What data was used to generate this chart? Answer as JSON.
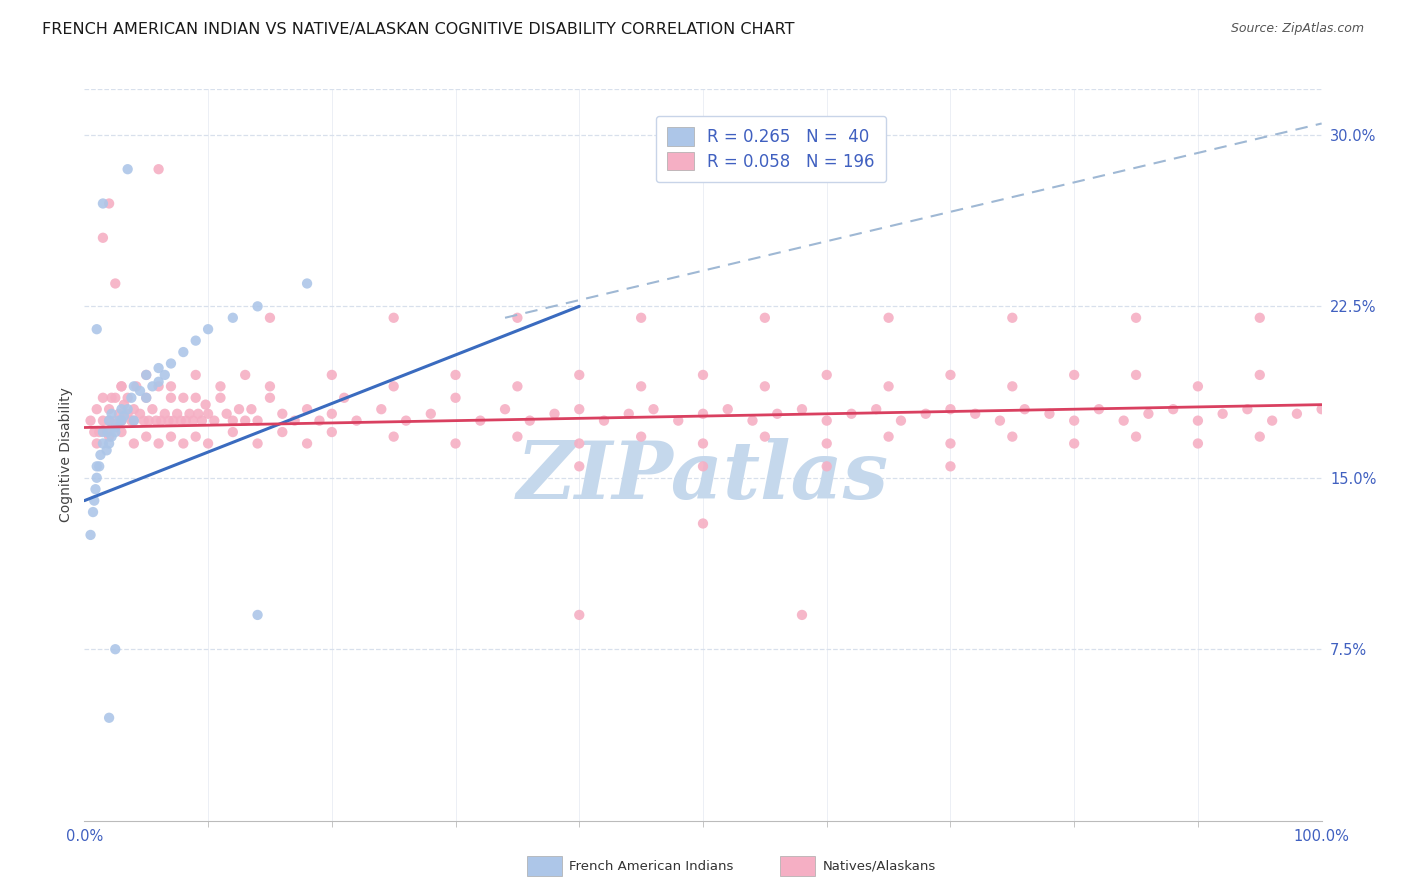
{
  "title": "FRENCH AMERICAN INDIAN VS NATIVE/ALASKAN COGNITIVE DISABILITY CORRELATION CHART",
  "source": "Source: ZipAtlas.com",
  "ylabel": "Cognitive Disability",
  "xlim": [
    0.0,
    1.0
  ],
  "ylim": [
    0.0,
    0.32
  ],
  "ytick_vals": [
    0.075,
    0.15,
    0.225,
    0.3
  ],
  "ytick_labels": [
    "7.5%",
    "15.0%",
    "22.5%",
    "30.0%"
  ],
  "blue_R": 0.265,
  "blue_N": 40,
  "pink_R": 0.058,
  "pink_N": 196,
  "blue_color": "#adc6e8",
  "pink_color": "#f5afc4",
  "blue_line_color": "#3a6bbf",
  "pink_line_color": "#d94060",
  "dashed_line_color": "#9fb8d4",
  "watermark": "ZIPatlas",
  "watermark_color": "#c5d8ec",
  "tick_color": "#4060c0",
  "title_color": "#1a1a1a",
  "source_color": "#555555",
  "legend_border_color": "#c8d4e8",
  "grid_color": "#d8e0ec",
  "bg_color": "#ffffff",
  "blue_x": [
    0.005,
    0.007,
    0.008,
    0.009,
    0.01,
    0.01,
    0.012,
    0.013,
    0.015,
    0.015,
    0.018,
    0.019,
    0.02,
    0.02,
    0.022,
    0.022,
    0.025,
    0.025,
    0.028,
    0.03,
    0.03,
    0.032,
    0.035,
    0.038,
    0.04,
    0.04,
    0.045,
    0.05,
    0.05,
    0.055,
    0.06,
    0.06,
    0.065,
    0.07,
    0.08,
    0.09,
    0.1,
    0.12,
    0.14,
    0.18
  ],
  "blue_y": [
    0.125,
    0.135,
    0.14,
    0.145,
    0.15,
    0.155,
    0.155,
    0.16,
    0.165,
    0.17,
    0.162,
    0.17,
    0.165,
    0.175,
    0.168,
    0.178,
    0.172,
    0.17,
    0.175,
    0.175,
    0.18,
    0.177,
    0.18,
    0.185,
    0.175,
    0.19,
    0.188,
    0.185,
    0.195,
    0.19,
    0.192,
    0.198,
    0.195,
    0.2,
    0.205,
    0.21,
    0.215,
    0.22,
    0.225,
    0.235
  ],
  "blue_x_outliers": [
    0.01,
    0.015,
    0.02,
    0.025,
    0.035,
    0.14
  ],
  "blue_y_outliers": [
    0.215,
    0.27,
    0.045,
    0.075,
    0.285,
    0.09
  ],
  "pink_x": [
    0.005,
    0.008,
    0.01,
    0.012,
    0.015,
    0.015,
    0.018,
    0.02,
    0.02,
    0.022,
    0.025,
    0.025,
    0.028,
    0.03,
    0.03,
    0.032,
    0.035,
    0.035,
    0.038,
    0.04,
    0.04,
    0.042,
    0.045,
    0.048,
    0.05,
    0.052,
    0.055,
    0.058,
    0.06,
    0.062,
    0.065,
    0.068,
    0.07,
    0.072,
    0.075,
    0.078,
    0.08,
    0.082,
    0.085,
    0.088,
    0.09,
    0.092,
    0.095,
    0.098,
    0.1,
    0.105,
    0.11,
    0.115,
    0.12,
    0.125,
    0.13,
    0.135,
    0.14,
    0.15,
    0.16,
    0.17,
    0.18,
    0.19,
    0.2,
    0.21,
    0.22,
    0.24,
    0.26,
    0.28,
    0.3,
    0.32,
    0.34,
    0.36,
    0.38,
    0.4,
    0.42,
    0.44,
    0.46,
    0.48,
    0.5,
    0.52,
    0.54,
    0.56,
    0.58,
    0.6,
    0.62,
    0.64,
    0.66,
    0.68,
    0.7,
    0.72,
    0.74,
    0.76,
    0.78,
    0.8,
    0.82,
    0.84,
    0.86,
    0.88,
    0.9,
    0.92,
    0.94,
    0.96,
    0.98,
    1.0,
    0.01,
    0.02,
    0.03,
    0.04,
    0.05,
    0.06,
    0.07,
    0.08,
    0.09,
    0.1,
    0.12,
    0.14,
    0.16,
    0.18,
    0.2,
    0.25,
    0.3,
    0.35,
    0.4,
    0.45,
    0.5,
    0.55,
    0.6,
    0.65,
    0.7,
    0.75,
    0.8,
    0.85,
    0.9,
    0.95,
    0.03,
    0.05,
    0.07,
    0.09,
    0.11,
    0.13,
    0.15,
    0.2,
    0.25,
    0.3,
    0.35,
    0.4,
    0.45,
    0.5,
    0.55,
    0.6,
    0.65,
    0.7,
    0.75,
    0.8,
    0.85,
    0.9,
    0.95,
    0.15,
    0.25,
    0.35,
    0.45,
    0.55,
    0.65,
    0.75,
    0.85,
    0.95,
    0.4,
    0.5,
    0.6,
    0.7
  ],
  "pink_y": [
    0.175,
    0.17,
    0.18,
    0.17,
    0.185,
    0.175,
    0.17,
    0.18,
    0.175,
    0.185,
    0.175,
    0.185,
    0.178,
    0.19,
    0.175,
    0.182,
    0.178,
    0.185,
    0.175,
    0.18,
    0.175,
    0.19,
    0.178,
    0.175,
    0.185,
    0.175,
    0.18,
    0.175,
    0.19,
    0.175,
    0.178,
    0.175,
    0.185,
    0.175,
    0.178,
    0.175,
    0.185,
    0.175,
    0.178,
    0.175,
    0.185,
    0.178,
    0.175,
    0.182,
    0.178,
    0.175,
    0.185,
    0.178,
    0.175,
    0.18,
    0.175,
    0.18,
    0.175,
    0.185,
    0.178,
    0.175,
    0.18,
    0.175,
    0.178,
    0.185,
    0.175,
    0.18,
    0.175,
    0.178,
    0.185,
    0.175,
    0.18,
    0.175,
    0.178,
    0.18,
    0.175,
    0.178,
    0.18,
    0.175,
    0.178,
    0.18,
    0.175,
    0.178,
    0.18,
    0.175,
    0.178,
    0.18,
    0.175,
    0.178,
    0.18,
    0.178,
    0.175,
    0.18,
    0.178,
    0.175,
    0.18,
    0.175,
    0.178,
    0.18,
    0.175,
    0.178,
    0.18,
    0.175,
    0.178,
    0.18,
    0.165,
    0.168,
    0.17,
    0.165,
    0.168,
    0.165,
    0.168,
    0.165,
    0.168,
    0.165,
    0.17,
    0.165,
    0.17,
    0.165,
    0.17,
    0.168,
    0.165,
    0.168,
    0.165,
    0.168,
    0.165,
    0.168,
    0.165,
    0.168,
    0.165,
    0.168,
    0.165,
    0.168,
    0.165,
    0.168,
    0.19,
    0.195,
    0.19,
    0.195,
    0.19,
    0.195,
    0.19,
    0.195,
    0.19,
    0.195,
    0.19,
    0.195,
    0.19,
    0.195,
    0.19,
    0.195,
    0.19,
    0.195,
    0.19,
    0.195,
    0.195,
    0.19,
    0.195,
    0.22,
    0.22,
    0.22,
    0.22,
    0.22,
    0.22,
    0.22,
    0.22,
    0.22,
    0.155,
    0.155,
    0.155,
    0.155
  ],
  "pink_x_outliers": [
    0.015,
    0.02,
    0.025,
    0.06,
    0.4,
    0.58,
    0.5
  ],
  "pink_y_outliers": [
    0.255,
    0.27,
    0.235,
    0.285,
    0.09,
    0.09,
    0.13
  ],
  "blue_line_x": [
    0.0,
    0.4
  ],
  "blue_line_y": [
    0.14,
    0.225
  ],
  "dashed_line_x": [
    0.34,
    1.0
  ],
  "dashed_line_y": [
    0.22,
    0.305
  ],
  "pink_line_x": [
    0.0,
    1.0
  ],
  "pink_line_y": [
    0.172,
    0.182
  ]
}
